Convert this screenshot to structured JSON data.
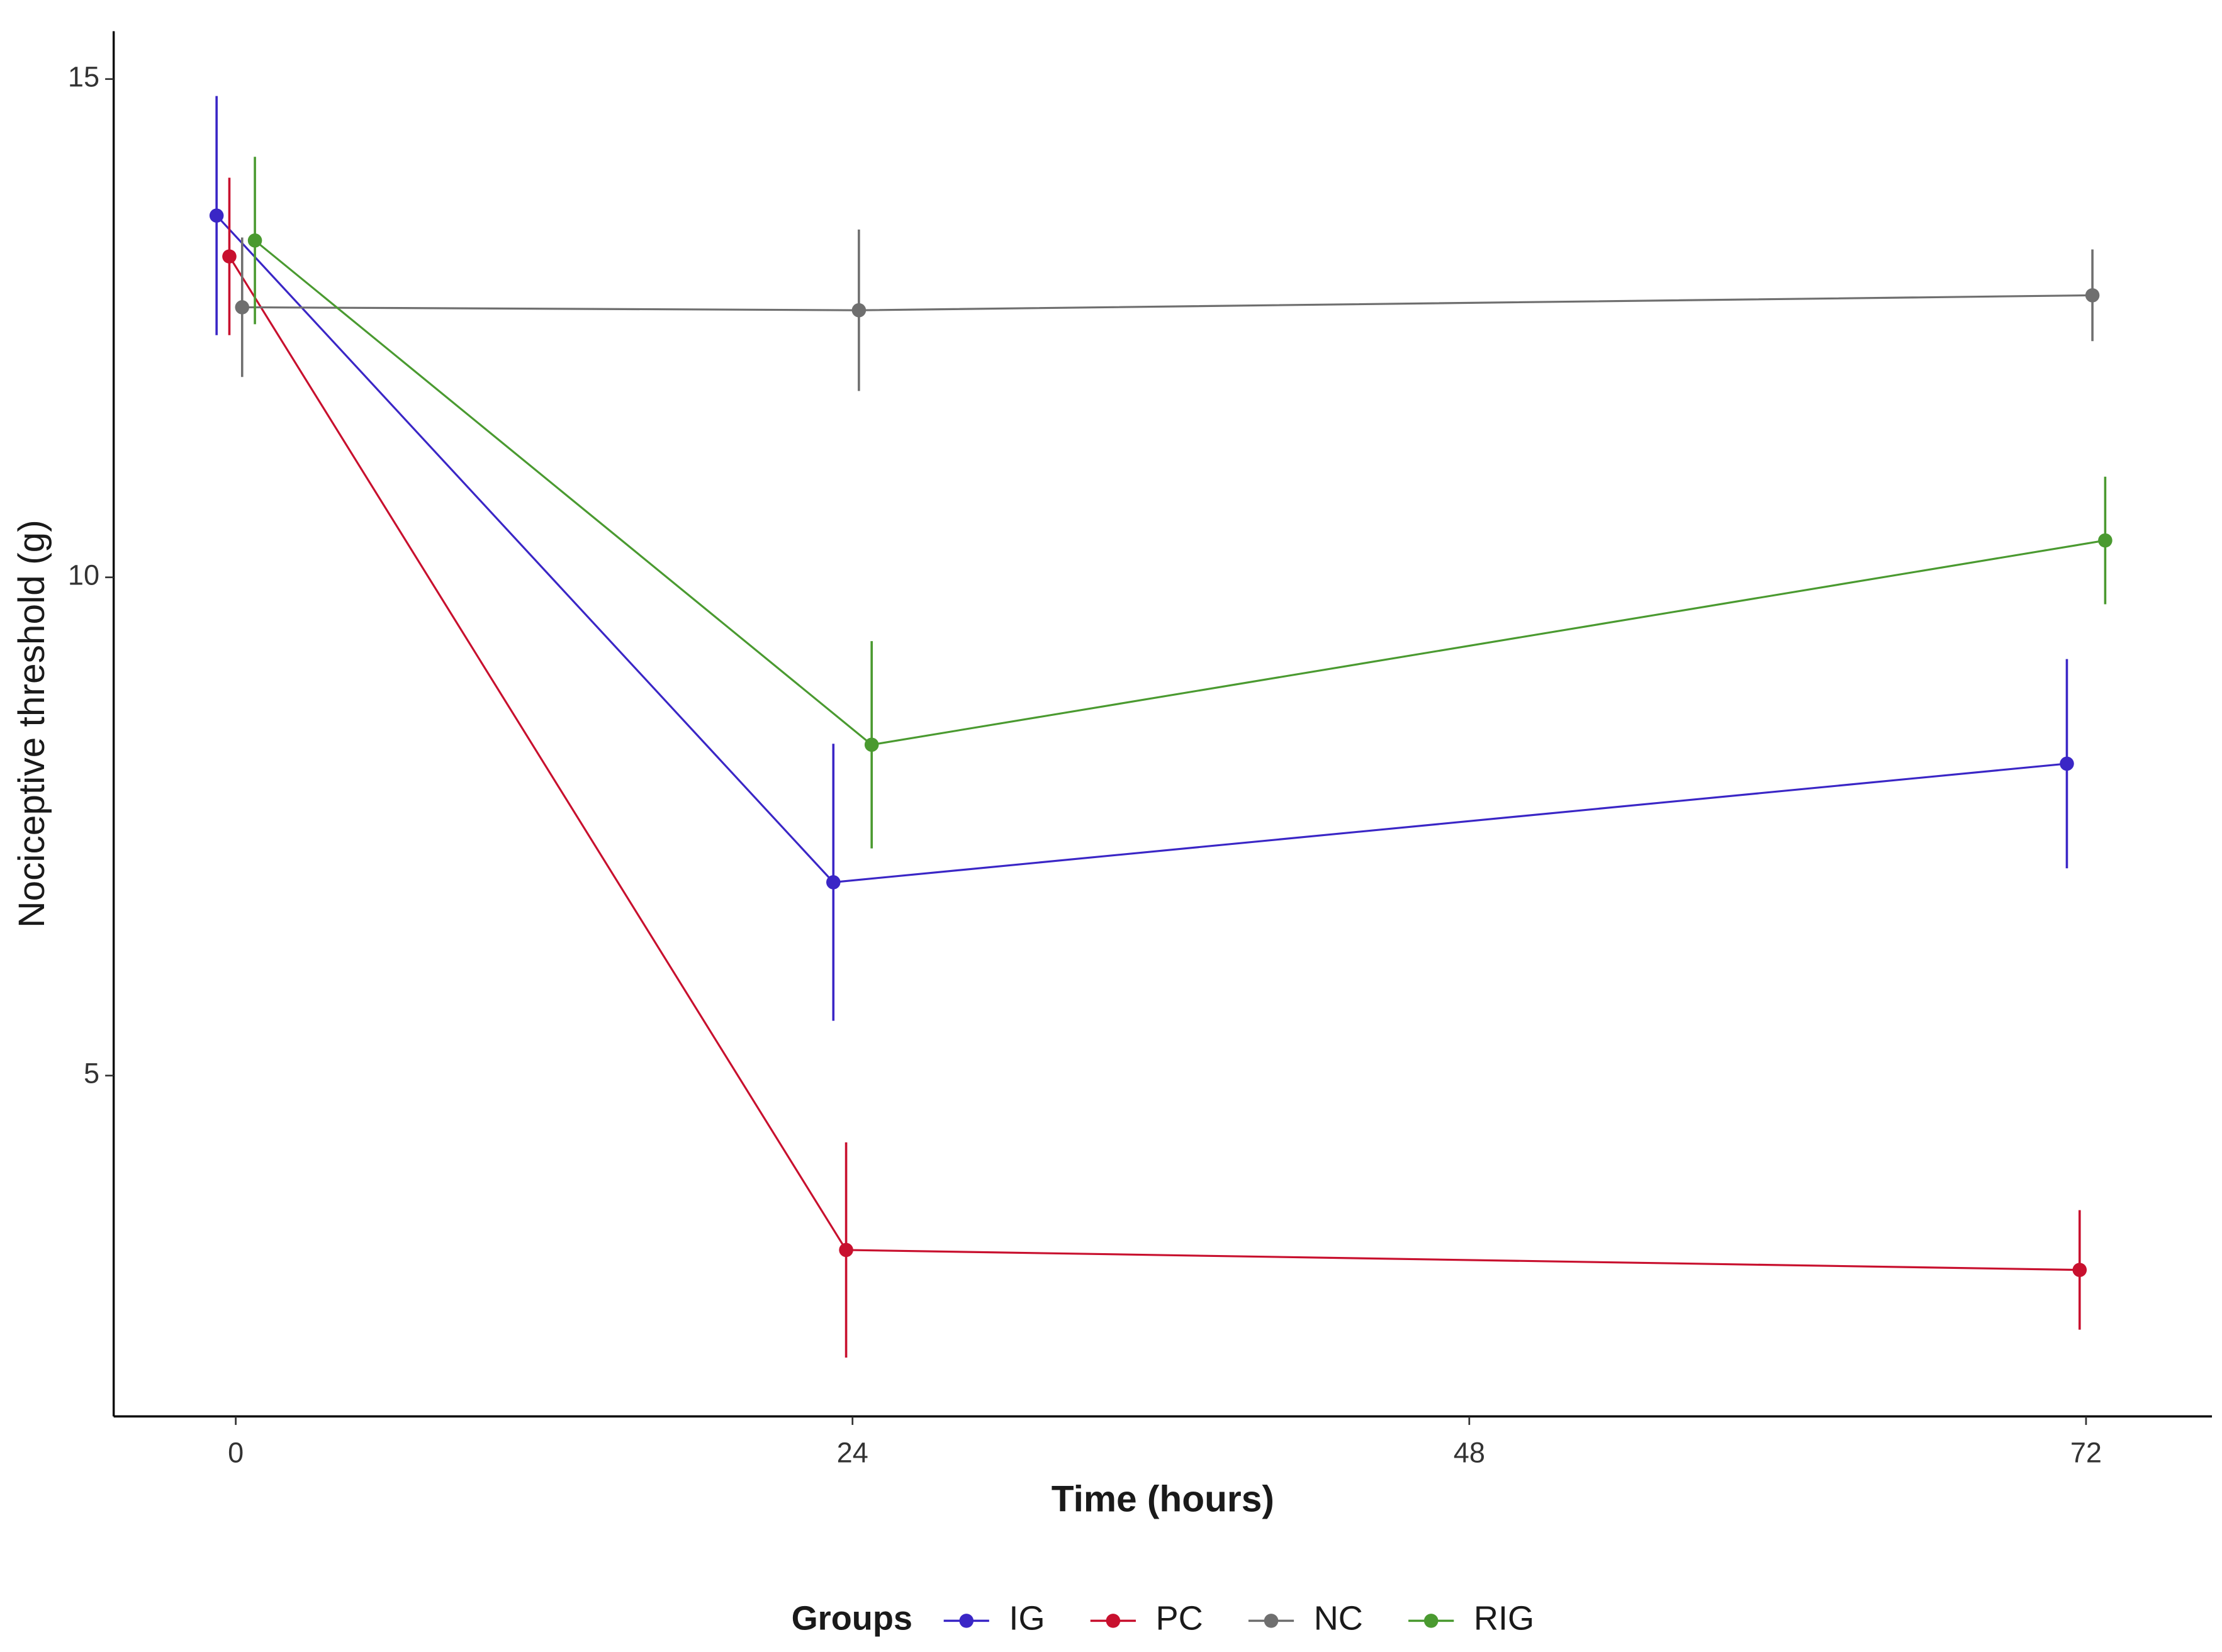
{
  "chart_data": {
    "type": "line",
    "x_label": "Time (hours)",
    "y_label": "Nociceptive threshold (g)",
    "x": [
      0,
      24,
      72
    ],
    "xlim": [
      -4.75,
      76.9
    ],
    "xticks": [
      0,
      24,
      48,
      72
    ],
    "ylim": [
      1.58,
      15.48
    ],
    "yticks": [
      5,
      10,
      15
    ],
    "grid": false,
    "legend_title": "Groups",
    "legend_position": "bottom",
    "series": [
      {
        "name": "IG",
        "color": "#3a26c6",
        "values": [
          13.63,
          6.94,
          8.13
        ],
        "errors": [
          1.2,
          1.39,
          1.05
        ]
      },
      {
        "name": "PC",
        "color": "#c8102e",
        "values": [
          13.22,
          3.25,
          3.05
        ],
        "errors": [
          0.79,
          1.08,
          0.6
        ]
      },
      {
        "name": "NC",
        "color": "#6f6f6f",
        "values": [
          12.71,
          12.68,
          12.83
        ],
        "errors": [
          0.7,
          0.81,
          0.46
        ]
      },
      {
        "name": "RIG",
        "color": "#4a9a30",
        "values": [
          13.38,
          8.32,
          10.37
        ],
        "errors": [
          0.84,
          1.04,
          0.64
        ]
      }
    ]
  }
}
